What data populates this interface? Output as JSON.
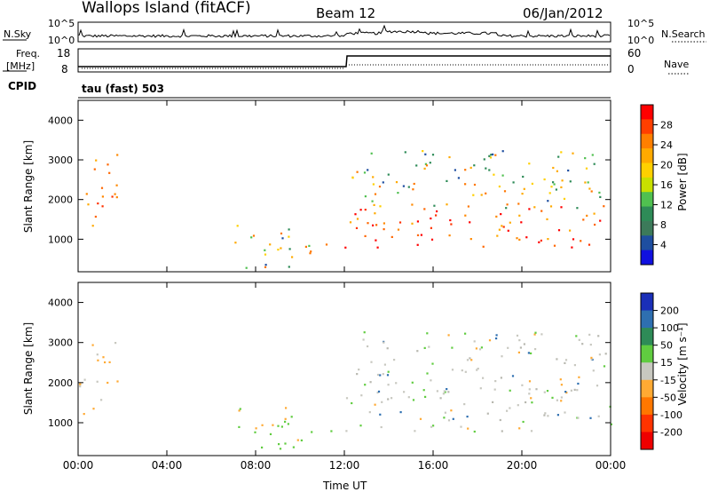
{
  "header": {
    "station": "Wallops Island (fitACF)",
    "beam": "Beam 12",
    "date": "06/Jan/2012"
  },
  "strip_labels": {
    "nsky": "N.Sky",
    "nsky_ticks": [
      "10^5",
      "10^0"
    ],
    "nsearch": "N.Search",
    "nsearch_ticks": [
      "10^5",
      "10^0"
    ],
    "freq_line1": "Freq.",
    "freq_line2": "[MHz]",
    "freq_ticks": [
      "18",
      "8"
    ],
    "nave": "Nave",
    "nave_ticks": [
      "60",
      "0"
    ],
    "cpid": "CPID",
    "cpid_value": "tau (fast) 503"
  },
  "chart_data": [
    {
      "type": "heatmap",
      "panel": "power",
      "ylabel": "Slant Range [km]",
      "xlabel": "",
      "x_ticks": [
        "00:00",
        "04:00",
        "08:00",
        "12:00",
        "16:00",
        "20:00",
        "00:00"
      ],
      "y_ticks": [
        1000,
        2000,
        3000,
        4000
      ],
      "ylim": [
        180,
        4500
      ],
      "xlim": [
        0,
        24
      ],
      "colorbar_label": "Power [dB]",
      "colorbar_ticks": [
        "28",
        "24",
        "20",
        "16",
        "12",
        "8",
        "4"
      ],
      "colorbar_colors": [
        "#ff0000",
        "#ff3f00",
        "#ff7f00",
        "#ffaa00",
        "#ffd000",
        "#c8e000",
        "#50c050",
        "#2e8b57",
        "#3c7a5a",
        "#1e4ea0",
        "#1010e0"
      ],
      "scatter_echo_regions": [
        {
          "t0": 0.0,
          "t1": 1.2,
          "r0": 1200,
          "r1": 2200,
          "level": "high"
        },
        {
          "t0": 0.6,
          "t1": 1.8,
          "r0": 2000,
          "r1": 3500,
          "level": "high"
        },
        {
          "t0": 6.8,
          "t1": 9.8,
          "r0": 900,
          "r1": 1400,
          "level": "mid"
        },
        {
          "t0": 7.5,
          "t1": 11.5,
          "r0": 300,
          "r1": 1000,
          "level": "mid"
        },
        {
          "t0": 12.0,
          "t1": 24.0,
          "r0": 800,
          "r1": 1900,
          "level": "high"
        },
        {
          "t0": 12.3,
          "t1": 23.8,
          "r0": 1800,
          "r1": 3300,
          "level": "mid"
        }
      ]
    },
    {
      "type": "heatmap",
      "panel": "velocity",
      "ylabel": "Slant Range [km]",
      "xlabel": "Time UT",
      "x_ticks": [
        "00:00",
        "04:00",
        "08:00",
        "12:00",
        "16:00",
        "20:00",
        "00:00"
      ],
      "y_ticks": [
        1000,
        2000,
        3000,
        4000
      ],
      "ylim": [
        180,
        4500
      ],
      "xlim": [
        0,
        24
      ],
      "colorbar_label": "Velocity [m s⁻¹]",
      "colorbar_ticks": [
        "200",
        "100",
        "50",
        "15",
        "-15",
        "-50",
        "-100",
        "-200"
      ],
      "colorbar_colors": [
        "#1a2fb8",
        "#2e6fb0",
        "#2e8b57",
        "#60cc40",
        "#c8c8c0",
        "#ffaa33",
        "#ff7700",
        "#ff3300",
        "#ee0000"
      ]
    }
  ]
}
